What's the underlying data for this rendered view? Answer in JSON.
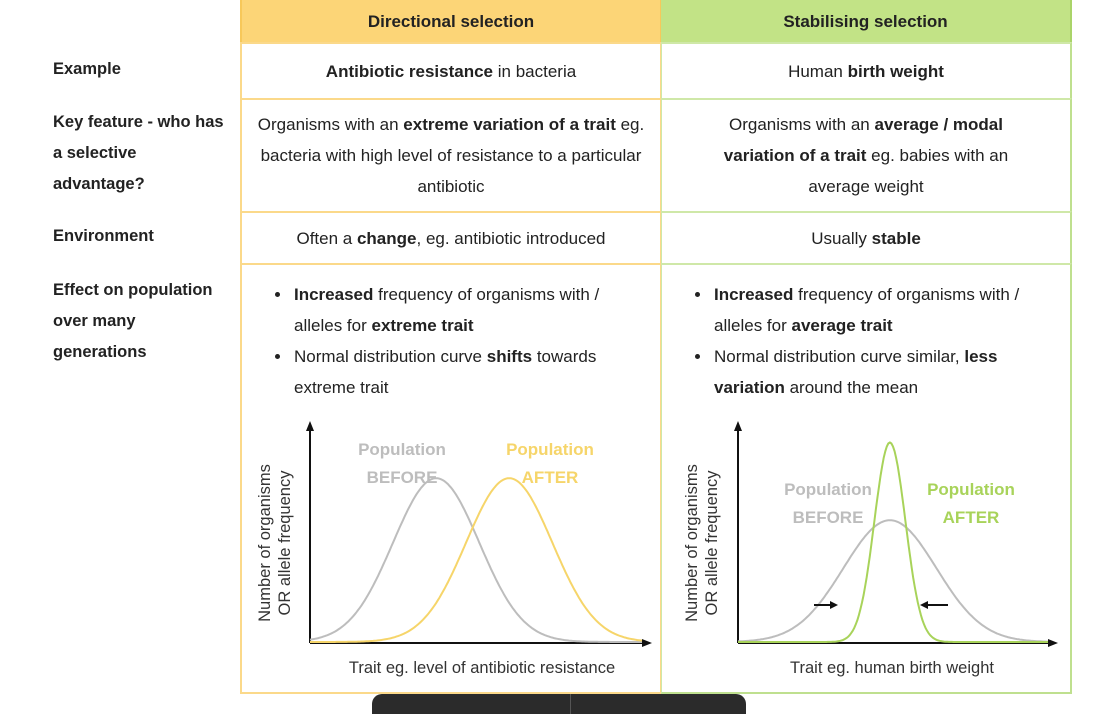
{
  "columns": {
    "directional": "Directional selection",
    "stabilising": "Stabilising selection"
  },
  "rows": {
    "example": {
      "label": "Example",
      "directional": {
        "bold": "Antibiotic resistance",
        "rest": " in bacteria"
      },
      "stabilising": {
        "pre": "Human ",
        "bold": "birth weight"
      }
    },
    "key_feature": {
      "label": "Key feature  - who has a selective advantage?",
      "directional": {
        "pre": "Organisms with an ",
        "bold": "extreme variation of a trait",
        "rest": " eg. bacteria with high level of resistance to a particular antibiotic"
      },
      "stabilising": {
        "pre": "Organisms with an ",
        "bold": "average / modal variation of a trait",
        "rest": " eg. babies with an average weight"
      }
    },
    "environment": {
      "label": "Environment",
      "directional": {
        "pre": "Often a ",
        "bold": "change",
        "rest": ", eg. antibiotic introduced"
      },
      "stabilising": {
        "pre": "Usually ",
        "bold": "stable"
      }
    },
    "effect": {
      "label": "Effect on population over many generations",
      "directional": [
        {
          "bold": "Increased",
          "rest": " frequency of organisms with / alleles for ",
          "bold2": "extreme trait"
        },
        {
          "pre": "Normal distribution curve ",
          "bold": "shifts",
          "rest": " towards extreme trait"
        }
      ],
      "stabilising": [
        {
          "bold": "Increased",
          "rest": " frequency of organisms with / alleles for ",
          "bold2": "average trait"
        },
        {
          "pre": "Normal distribution curve similar, ",
          "bold": "less variation",
          "rest": " around the mean"
        }
      ]
    }
  },
  "colors": {
    "before": "#bdbdbd",
    "after_directional": "#f6d56a",
    "after_stabilising": "#a8d35a"
  },
  "chart_data": [
    {
      "type": "line",
      "ylabel": "Number of organisms OR allele frequency",
      "xlabel": "Trait eg. level of antibiotic resistance",
      "series": [
        {
          "name": "Population BEFORE",
          "label_lines": [
            "Population",
            "BEFORE"
          ],
          "mean": 0.38,
          "sd": 0.13,
          "peak": 0.78
        },
        {
          "name": "Population AFTER",
          "label_lines": [
            "Population",
            "AFTER"
          ],
          "mean": 0.6,
          "sd": 0.13,
          "peak": 0.78
        }
      ]
    },
    {
      "type": "line",
      "ylabel": "Number of organisms OR allele frequency",
      "xlabel": "Trait eg. human birth weight",
      "series": [
        {
          "name": "Population BEFORE",
          "label_lines": [
            "Population",
            "BEFORE"
          ],
          "mean": 0.49,
          "sd": 0.15,
          "peak": 0.58
        },
        {
          "name": "Population AFTER",
          "label_lines": [
            "Population",
            "AFTER"
          ],
          "mean": 0.49,
          "sd": 0.05,
          "peak": 0.95
        }
      ]
    }
  ]
}
